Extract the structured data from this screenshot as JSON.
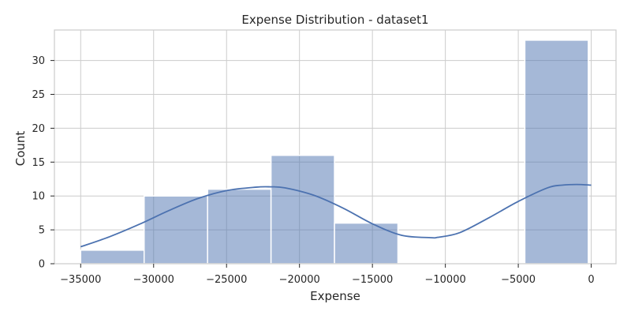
{
  "chart_data": {
    "type": "histogram",
    "title": "Expense Distribution - dataset1",
    "xlabel": "Expense",
    "ylabel": "Count",
    "xlim": [
      -36800,
      1700
    ],
    "ylim": [
      0,
      34.5
    ],
    "x_ticks": [
      -35000,
      -30000,
      -25000,
      -20000,
      -15000,
      -10000,
      -5000,
      0
    ],
    "x_tick_labels": [
      "−35000",
      "−30000",
      "−25000",
      "−20000",
      "−15000",
      "−10000",
      "−5000",
      "0"
    ],
    "y_ticks": [
      0,
      5,
      10,
      15,
      20,
      25,
      30
    ],
    "y_tick_labels": [
      "0",
      "5",
      "10",
      "15",
      "20",
      "25",
      "30"
    ],
    "grid": true,
    "bins": [
      {
        "x0": -35000,
        "x1": -30650,
        "count": 2
      },
      {
        "x0": -30650,
        "x1": -26300,
        "count": 10
      },
      {
        "x0": -26300,
        "x1": -21950,
        "count": 11
      },
      {
        "x0": -21950,
        "x1": -17600,
        "count": 16
      },
      {
        "x0": -17600,
        "x1": -13250,
        "count": 6
      },
      {
        "x0": -13250,
        "x1": -8900,
        "count": 0
      },
      {
        "x0": -8900,
        "x1": -4550,
        "count": 0
      },
      {
        "x0": -4550,
        "x1": -200,
        "count": 33
      }
    ],
    "kde": {
      "x": [
        -35000,
        -33000,
        -31000,
        -29000,
        -27000,
        -25000,
        -23000,
        -22000,
        -21000,
        -19000,
        -17000,
        -15000,
        -13000,
        -11000,
        -10500,
        -9000,
        -7000,
        -5000,
        -3000,
        -2000,
        -1000,
        0
      ],
      "y": [
        2.5,
        4.0,
        5.8,
        7.8,
        9.6,
        10.8,
        11.3,
        11.35,
        11.2,
        10.1,
        8.2,
        5.9,
        4.2,
        3.85,
        3.9,
        4.6,
        6.8,
        9.2,
        11.2,
        11.6,
        11.7,
        11.6
      ]
    },
    "colors": {
      "bar_fill": "#4c72b0",
      "bar_opacity": 0.5,
      "bar_edge": "#ffffff",
      "kde_line": "#4c72b0",
      "grid": "#cccccc",
      "spine": "#cccccc"
    }
  }
}
